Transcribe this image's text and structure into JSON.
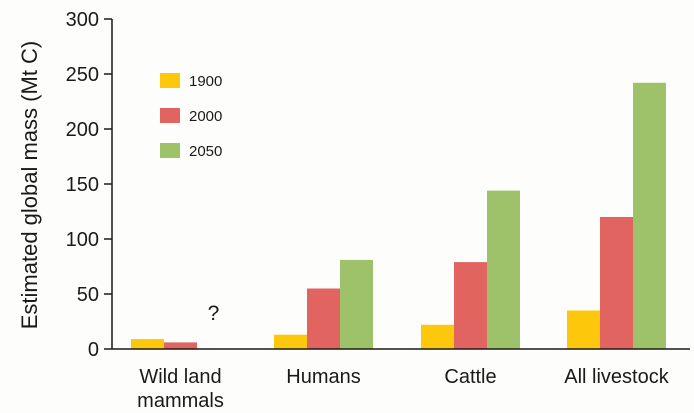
{
  "chart_data": {
    "type": "bar",
    "ylabel": "Estimated global mass (Mt C)",
    "xlabel": "",
    "ylim": [
      0,
      300
    ],
    "yticks": [
      "0",
      "50",
      "100",
      "150",
      "200",
      "250",
      "300"
    ],
    "categories": [
      [
        "Wild land",
        "mammals"
      ],
      [
        "Humans"
      ],
      [
        "Cattle"
      ],
      [
        "All livestock"
      ]
    ],
    "series": [
      {
        "name": "1900",
        "color": "#fdc70c",
        "values": [
          9,
          13,
          22,
          35
        ]
      },
      {
        "name": "2000",
        "color": "#e16460",
        "values": [
          6,
          55,
          79,
          120
        ]
      },
      {
        "name": "2050",
        "color": "#9dc26a",
        "values": [
          null,
          81,
          144,
          242
        ]
      }
    ],
    "legend_position": "top-left",
    "grid": false,
    "annotations": [
      {
        "text": "?",
        "category_index": 0,
        "series_index": 2
      }
    ]
  }
}
